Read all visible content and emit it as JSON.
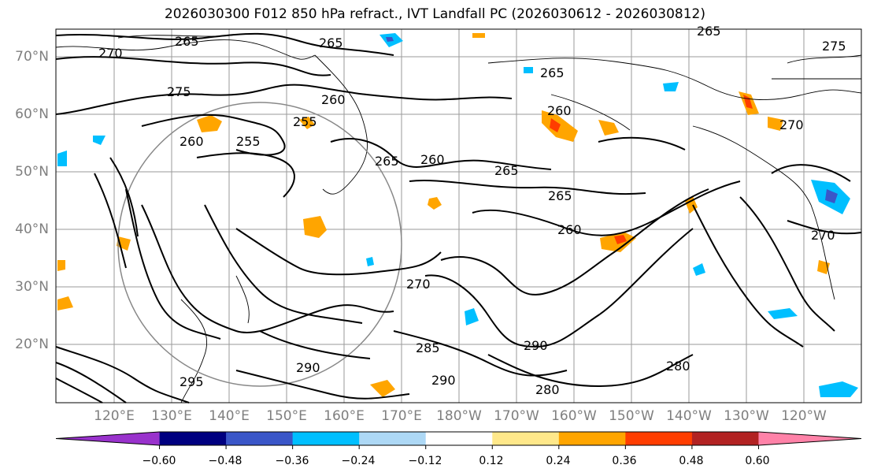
{
  "title": "2026030300 F012 850 hPa refract., IVT Landfall PC (2026030612 - 2026030812)",
  "lat_labels": [
    "70°N",
    "60°N",
    "50°N",
    "40°N",
    "30°N",
    "20°N"
  ],
  "lon_labels": [
    "120°E",
    "130°E",
    "140°E",
    "150°E",
    "160°E",
    "170°E",
    "180°W",
    "170°W",
    "160°W",
    "150°W",
    "140°W",
    "130°W",
    "120°W"
  ],
  "contour_labels": [
    "265",
    "270",
    "275",
    "265",
    "260",
    "255",
    "260",
    "255",
    "265",
    "260",
    "265",
    "265",
    "260",
    "270",
    "265",
    "275",
    "260",
    "270",
    "270",
    "280",
    "285",
    "290",
    "290",
    "295",
    "290",
    "280"
  ],
  "colorbar": {
    "colors": [
      "#9932cc",
      "#000080",
      "#3a56c8",
      "#00bfff",
      "#add8f5",
      "#ffffff",
      "#ffe88a",
      "#ffa500",
      "#ff3d00",
      "#b22222",
      "#ff82a8"
    ],
    "tick_labels": [
      "−0.60",
      "−0.48",
      "−0.36",
      "−0.24",
      "−0.12",
      "0.12",
      "0.24",
      "0.36",
      "0.48",
      "0.60"
    ]
  }
}
